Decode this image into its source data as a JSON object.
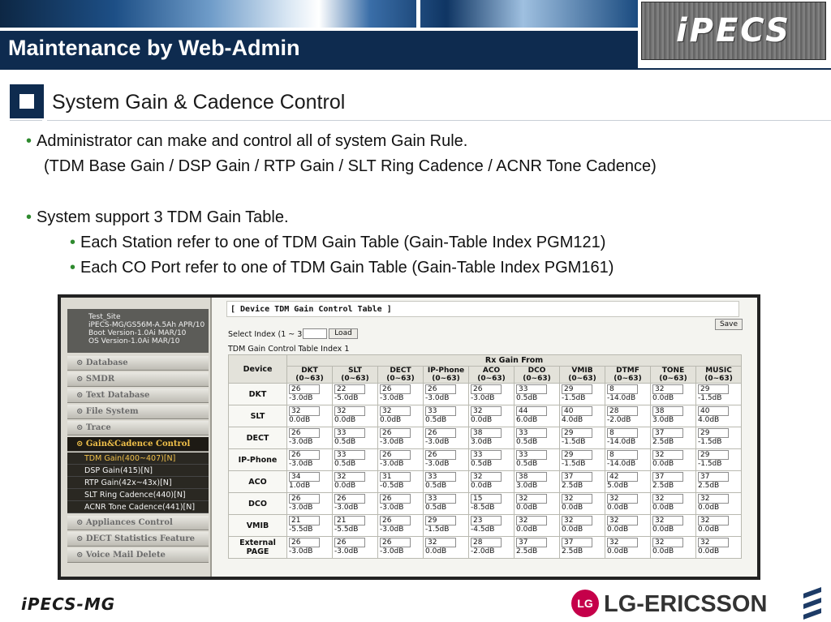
{
  "header": {
    "title": "Maintenance by Web-Admin",
    "logo_text": "iPECS"
  },
  "section": {
    "title": "System Gain & Cadence Control"
  },
  "bullets": {
    "b1": "Administrator can make and control all of system Gain Rule.",
    "b1_sub": "(TDM Base Gain / DSP Gain / RTP Gain / SLT Ring Cadence / ACNR Tone Cadence)",
    "b2": "System support 3 TDM Gain Table.",
    "b3": "Each Station refer to one of TDM Gain Table (Gain-Table Index PGM121)",
    "b4": "Each CO Port refer to one of TDM Gain Table (Gain-Table Index PGM161)"
  },
  "webadmin": {
    "site_info": "Test_Site\niPECS-MG/GS56M-A.5Ah APR/10\nBoot Version-1.0Ai MAR/10\nOS Version-1.0Ai MAR/10",
    "menu": [
      {
        "label": "Database"
      },
      {
        "label": "SMDR"
      },
      {
        "label": "Text Database"
      },
      {
        "label": "File System"
      },
      {
        "label": "Trace"
      },
      {
        "label": "Gain&Cadence Control"
      }
    ],
    "submenu": [
      {
        "label": "TDM Gain(400~407)[N]"
      },
      {
        "label": "DSP Gain(415)[N]"
      },
      {
        "label": "RTP Gain(42x~43x)[N]"
      },
      {
        "label": "SLT Ring Cadence(440)[N]"
      },
      {
        "label": "ACNR Tone Cadence(441)[N]"
      }
    ],
    "menu_after": [
      {
        "label": "Appliances Control"
      },
      {
        "label": "DECT Statistics Feature"
      },
      {
        "label": "Voice Mail Delete"
      }
    ],
    "panel_title": "[ Device TDM Gain Control Table ]",
    "save_label": "Save",
    "select_label": "Select Index (1 ~ 3) :",
    "load_label": "Load",
    "table_caption": "TDM Gain Control Table Index 1",
    "device_header": "Device",
    "group_header": "Rx Gain From",
    "columns": [
      {
        "name": "DKT",
        "range": "(0~63)"
      },
      {
        "name": "SLT",
        "range": "(0~63)"
      },
      {
        "name": "DECT",
        "range": "(0~63)"
      },
      {
        "name": "IP-Phone",
        "range": "(0~63)"
      },
      {
        "name": "ACO",
        "range": "(0~63)"
      },
      {
        "name": "DCO",
        "range": "(0~63)"
      },
      {
        "name": "VMIB",
        "range": "(0~63)"
      },
      {
        "name": "DTMF",
        "range": "(0~63)"
      },
      {
        "name": "TONE",
        "range": "(0~63)"
      },
      {
        "name": "MUSIC",
        "range": "(0~63)"
      }
    ],
    "rows": [
      {
        "device": "DKT",
        "cells": [
          [
            "26",
            "-3.0dB"
          ],
          [
            "22",
            "-5.0dB"
          ],
          [
            "26",
            "-3.0dB"
          ],
          [
            "26",
            "-3.0dB"
          ],
          [
            "26",
            "-3.0dB"
          ],
          [
            "33",
            "0.5dB"
          ],
          [
            "29",
            "-1.5dB"
          ],
          [
            "8",
            "-14.0dB"
          ],
          [
            "32",
            "0.0dB"
          ],
          [
            "29",
            "-1.5dB"
          ]
        ]
      },
      {
        "device": "SLT",
        "cells": [
          [
            "32",
            "0.0dB"
          ],
          [
            "32",
            "0.0dB"
          ],
          [
            "32",
            "0.0dB"
          ],
          [
            "33",
            "0.5dB"
          ],
          [
            "32",
            "0.0dB"
          ],
          [
            "44",
            "6.0dB"
          ],
          [
            "40",
            "4.0dB"
          ],
          [
            "28",
            "-2.0dB"
          ],
          [
            "38",
            "3.0dB"
          ],
          [
            "40",
            "4.0dB"
          ]
        ]
      },
      {
        "device": "DECT",
        "cells": [
          [
            "26",
            "-3.0dB"
          ],
          [
            "33",
            "0.5dB"
          ],
          [
            "26",
            "-3.0dB"
          ],
          [
            "26",
            "-3.0dB"
          ],
          [
            "38",
            "3.0dB"
          ],
          [
            "33",
            "0.5dB"
          ],
          [
            "29",
            "-1.5dB"
          ],
          [
            "8",
            "-14.0dB"
          ],
          [
            "37",
            "2.5dB"
          ],
          [
            "29",
            "-1.5dB"
          ]
        ]
      },
      {
        "device": "IP-Phone",
        "cells": [
          [
            "26",
            "-3.0dB"
          ],
          [
            "33",
            "0.5dB"
          ],
          [
            "26",
            "-3.0dB"
          ],
          [
            "26",
            "-3.0dB"
          ],
          [
            "33",
            "0.5dB"
          ],
          [
            "33",
            "0.5dB"
          ],
          [
            "29",
            "-1.5dB"
          ],
          [
            "8",
            "-14.0dB"
          ],
          [
            "32",
            "0.0dB"
          ],
          [
            "29",
            "-1.5dB"
          ]
        ]
      },
      {
        "device": "ACO",
        "cells": [
          [
            "34",
            "1.0dB"
          ],
          [
            "32",
            "0.0dB"
          ],
          [
            "31",
            "-0.5dB"
          ],
          [
            "33",
            "0.5dB"
          ],
          [
            "32",
            "0.0dB"
          ],
          [
            "38",
            "3.0dB"
          ],
          [
            "37",
            "2.5dB"
          ],
          [
            "42",
            "5.0dB"
          ],
          [
            "37",
            "2.5dB"
          ],
          [
            "37",
            "2.5dB"
          ]
        ]
      },
      {
        "device": "DCO",
        "cells": [
          [
            "26",
            "-3.0dB"
          ],
          [
            "26",
            "-3.0dB"
          ],
          [
            "26",
            "-3.0dB"
          ],
          [
            "33",
            "0.5dB"
          ],
          [
            "15",
            "-8.5dB"
          ],
          [
            "32",
            "0.0dB"
          ],
          [
            "32",
            "0.0dB"
          ],
          [
            "32",
            "0.0dB"
          ],
          [
            "32",
            "0.0dB"
          ],
          [
            "32",
            "0.0dB"
          ]
        ]
      },
      {
        "device": "VMIB",
        "cells": [
          [
            "21",
            "-5.5dB"
          ],
          [
            "21",
            "-5.5dB"
          ],
          [
            "26",
            "-3.0dB"
          ],
          [
            "29",
            "-1.5dB"
          ],
          [
            "23",
            "-4.5dB"
          ],
          [
            "32",
            "0.0dB"
          ],
          [
            "32",
            "0.0dB"
          ],
          [
            "32",
            "0.0dB"
          ],
          [
            "32",
            "0.0dB"
          ],
          [
            "32",
            "0.0dB"
          ]
        ]
      },
      {
        "device": "External PAGE",
        "cells": [
          [
            "26",
            "-3.0dB"
          ],
          [
            "26",
            "-3.0dB"
          ],
          [
            "26",
            "-3.0dB"
          ],
          [
            "32",
            "0.0dB"
          ],
          [
            "28",
            "-2.0dB"
          ],
          [
            "37",
            "2.5dB"
          ],
          [
            "37",
            "2.5dB"
          ],
          [
            "32",
            "0.0dB"
          ],
          [
            "32",
            "0.0dB"
          ],
          [
            "32",
            "0.0dB"
          ]
        ]
      }
    ]
  },
  "footer": {
    "product_logo": "iPECS-MG",
    "lg_mark": "LG",
    "company": "LG-ERICSSON"
  },
  "colors": {
    "navy": "#0e2b4f",
    "bullet_green": "#2f8a2f",
    "lg_red": "#c5004a",
    "menu_active": "#f0c04a"
  }
}
